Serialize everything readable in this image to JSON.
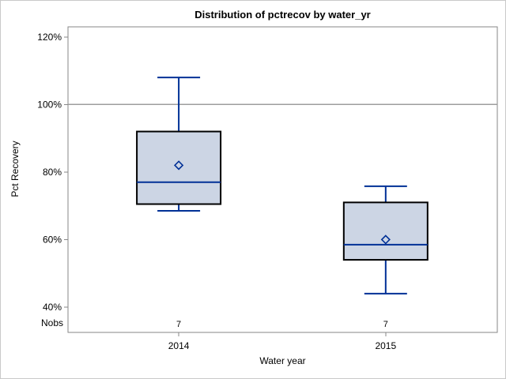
{
  "chart_data": {
    "type": "boxplot",
    "title": "Distribution of pctrecov by water_yr",
    "xlabel": "Water year",
    "ylabel": "Pct Recovery",
    "nobs_label": "Nobs",
    "categories": [
      "2014",
      "2015"
    ],
    "yticks": [
      40,
      60,
      80,
      100,
      120
    ],
    "ytick_suffix": "%",
    "ylim": [
      32.5,
      123
    ],
    "refline": 100,
    "series": [
      {
        "category": "2014",
        "nobs": "7",
        "whisker_low": 68.5,
        "q1": 70.5,
        "median": 77,
        "mean": 82,
        "q3": 92,
        "whisker_high": 108
      },
      {
        "category": "2015",
        "nobs": "7",
        "whisker_low": 44,
        "q1": 54,
        "median": 58.5,
        "mean": 60,
        "q3": 71,
        "whisker_high": 75.8
      }
    ],
    "legend": "none",
    "grid": "refline-only",
    "colors": {
      "box_fill": "#ccd5e4",
      "box_border": "#000000",
      "line": "#003096",
      "frame": "#878787",
      "refline": "#9d9d9d",
      "text": "#000000"
    }
  }
}
